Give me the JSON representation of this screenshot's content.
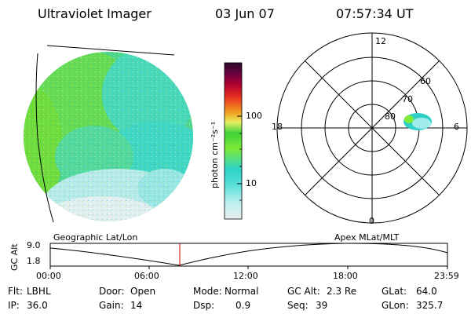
{
  "header": {
    "instrument": "Ultraviolet Imager",
    "date": "03 Jun 07",
    "time": "07:57:34 UT"
  },
  "colorbar": {
    "unit_label": "photon cm⁻²s⁻¹",
    "ticks": [
      "100",
      "10"
    ],
    "colors": [
      "#e8eef0",
      "#bfeff0",
      "#55e0d8",
      "#2cd4c8",
      "#7fea38",
      "#3fd23a",
      "#e8f060",
      "#f0a020",
      "#e83020",
      "#b00030",
      "#6a0040",
      "#2a0a2a"
    ],
    "scale": "log"
  },
  "polar_plot": {
    "mlt_labels": {
      "top": "12",
      "bottom": "0",
      "left": "18",
      "right": "6"
    },
    "lat_labels": [
      "60",
      "70",
      "80"
    ]
  },
  "strip": {
    "left_axis_title": "GC Alt",
    "y_ticks": [
      "9.0",
      "1.8"
    ],
    "x_ticks": [
      "00:00",
      "06:00",
      "12:00",
      "18:00",
      "23:59"
    ],
    "coord_left": "Geographic Lat/Lon",
    "coord_right": "Apex MLat/MLT",
    "marker_time": "07:57"
  },
  "status": {
    "filter_label": "Flt:",
    "filter_value": "LBHL",
    "ip_label": "IP:",
    "ip_value": "36.0",
    "door_label": "Door:",
    "door_value": "Open",
    "gain_label": "Gain:",
    "gain_value": "14",
    "mode_label": "Mode:",
    "mode_value": "Normal",
    "dsp_label": "Dsp:",
    "dsp_value": "0.9",
    "gcalt_label": "GC Alt:",
    "gcalt_value": "2.3 Re",
    "seq_label": "Seq:",
    "seq_value": "39",
    "glat_label": "GLat:",
    "glat_value": "64.0",
    "glon_label": "GLon:",
    "glon_value": "325.7"
  }
}
